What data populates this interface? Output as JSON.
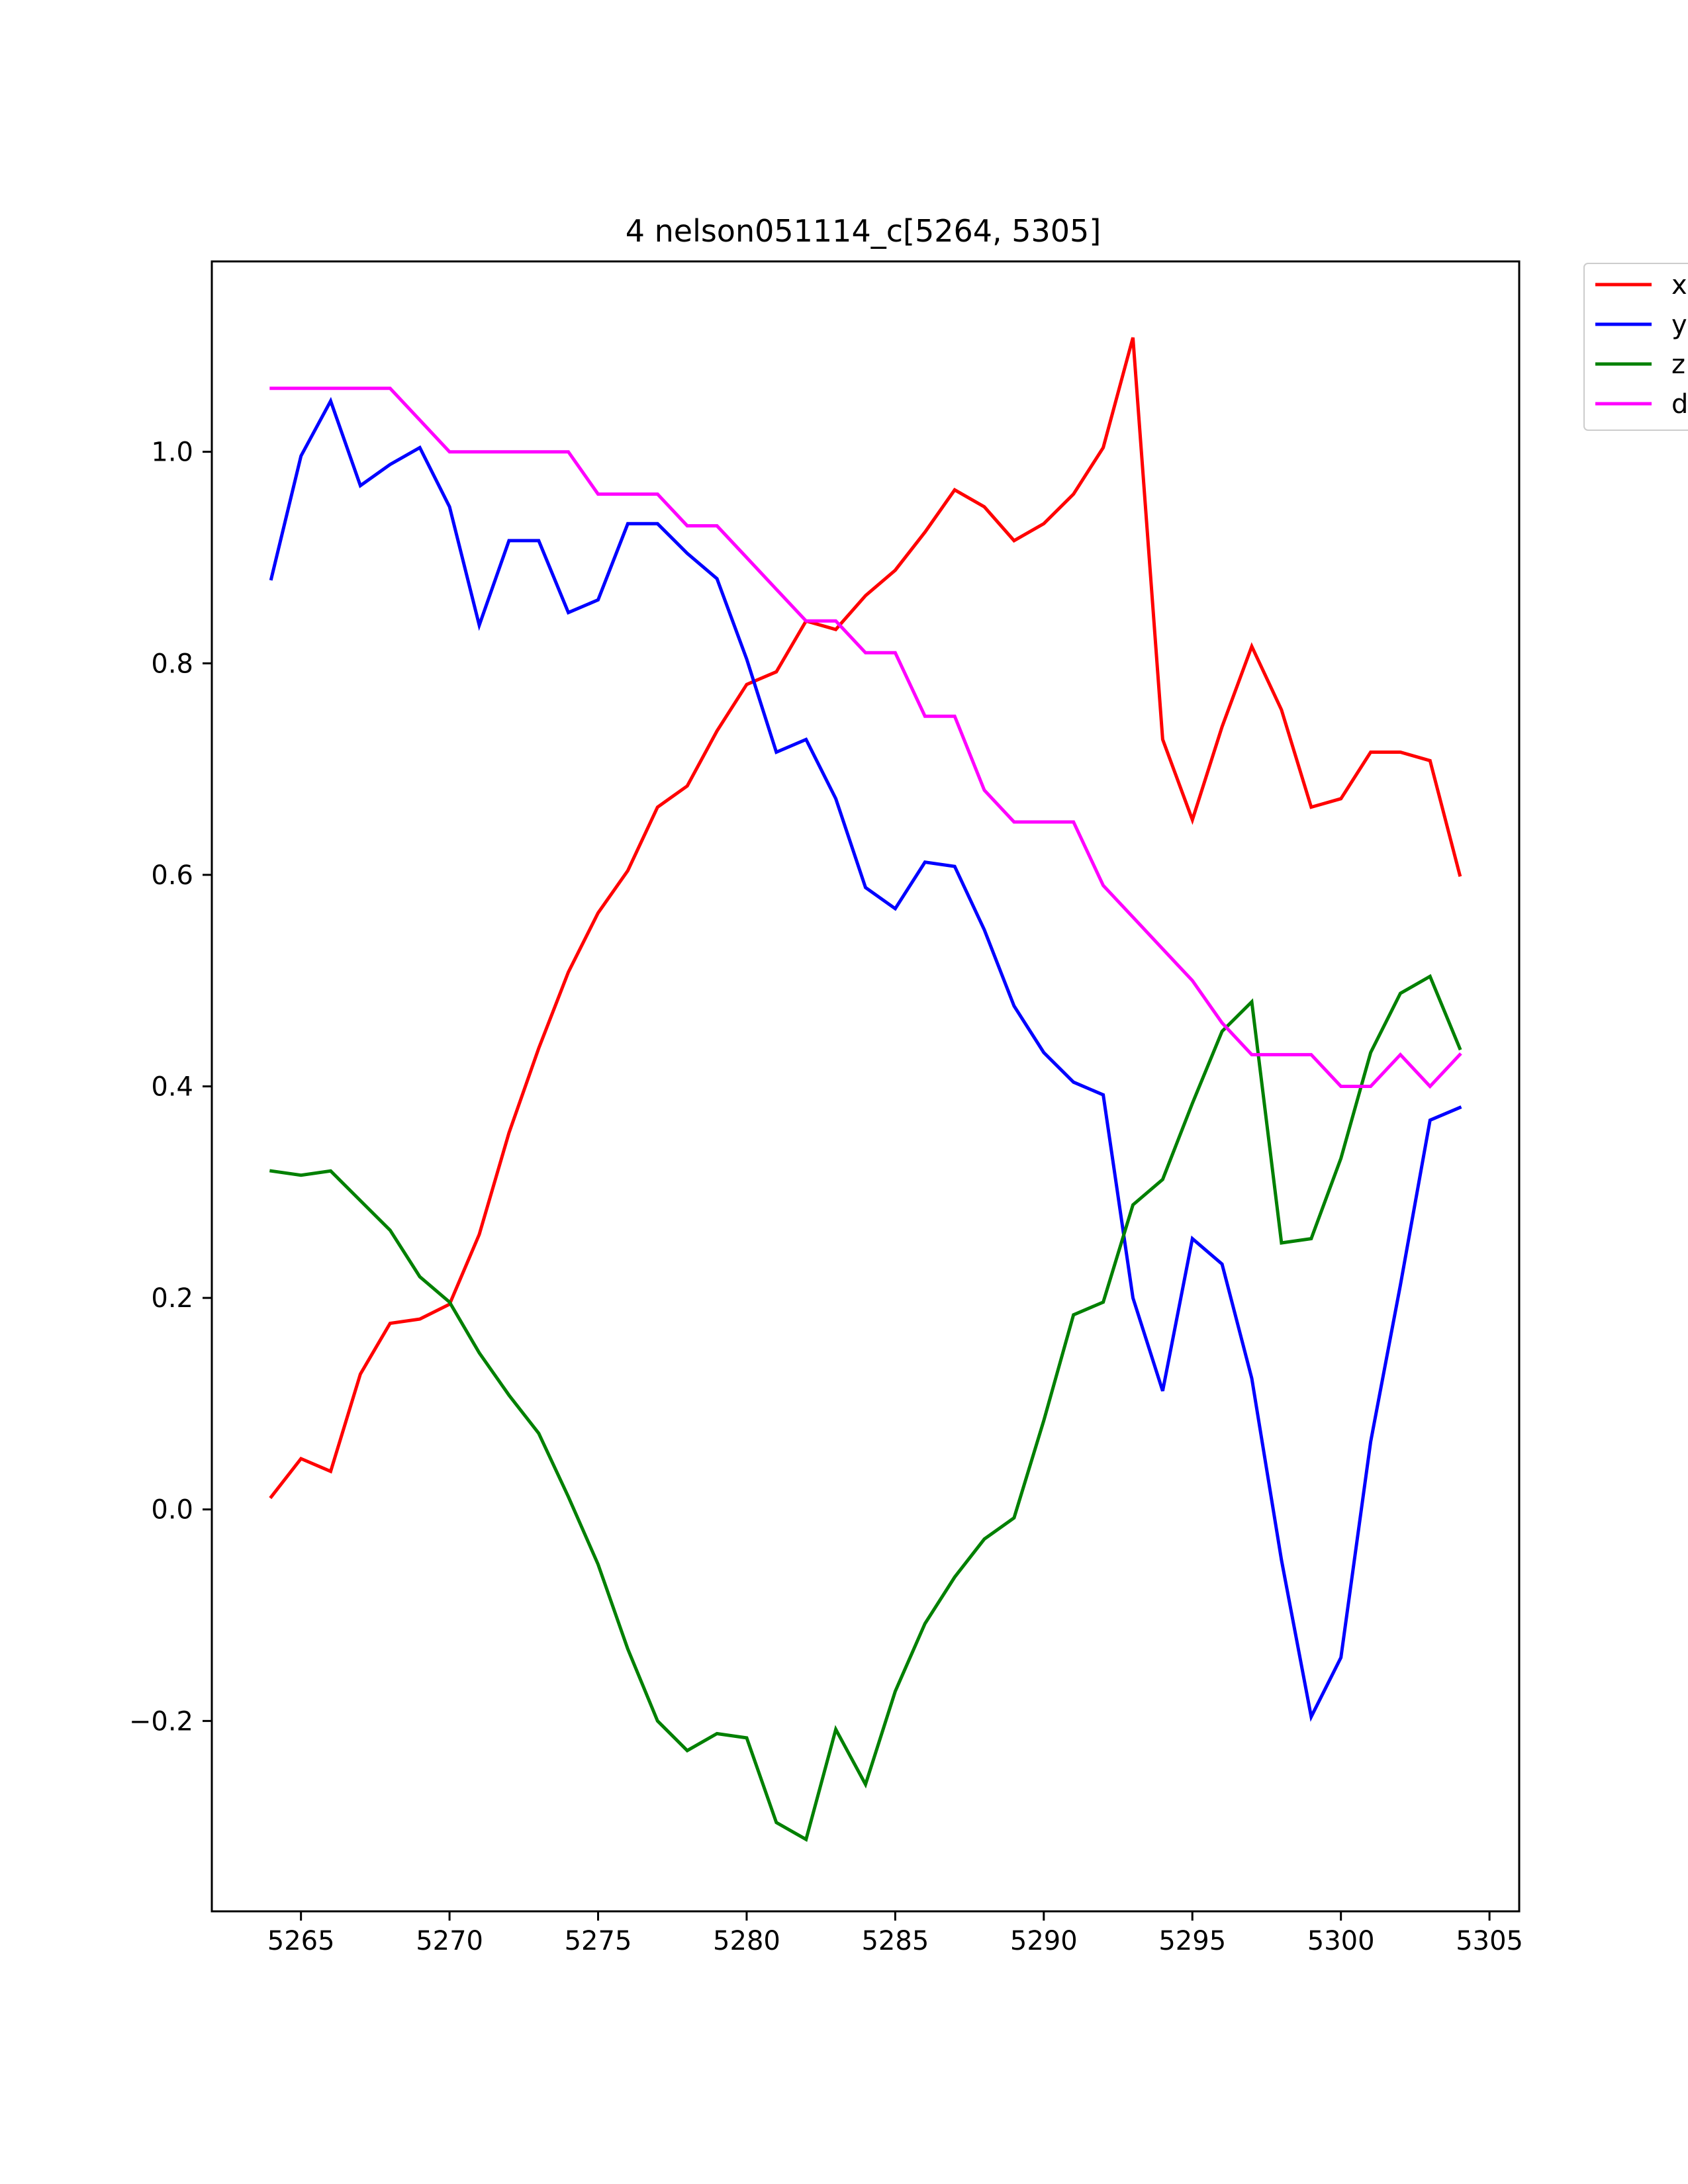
{
  "chart_data": {
    "type": "line",
    "title": "4 nelson051114_c[5264, 5305]",
    "xlabel": "",
    "ylabel": "",
    "xlim": [
      5262,
      5306
    ],
    "ylim": [
      -0.38,
      1.18
    ],
    "xticks": [
      5265,
      5270,
      5275,
      5280,
      5285,
      5290,
      5295,
      5300,
      5305
    ],
    "yticks": [
      -0.2,
      0.0,
      0.2,
      0.4,
      0.6,
      0.8,
      1.0
    ],
    "ytick_labels": [
      "−0.2",
      "0.0",
      "0.2",
      "0.4",
      "0.6",
      "0.8",
      "1.0"
    ],
    "grid": false,
    "legend": {
      "placement": "top-right, outside plot"
    },
    "x": [
      5264,
      5265,
      5266,
      5267,
      5268,
      5269,
      5270,
      5271,
      5272,
      5273,
      5274,
      5275,
      5276,
      5277,
      5278,
      5279,
      5280,
      5281,
      5282,
      5283,
      5284,
      5285,
      5286,
      5287,
      5288,
      5289,
      5290,
      5291,
      5292,
      5293,
      5294,
      5295,
      5296,
      5297,
      5298,
      5299,
      5300,
      5301,
      5302,
      5303,
      5304
    ],
    "series": [
      {
        "name": "x",
        "color": "#ff0000",
        "values": [
          0.012,
          0.048,
          0.036,
          0.128,
          0.176,
          0.18,
          0.194,
          0.26,
          0.356,
          0.436,
          0.508,
          0.564,
          0.604,
          0.664,
          0.684,
          0.736,
          0.78,
          0.792,
          0.84,
          0.832,
          0.864,
          0.888,
          0.924,
          0.964,
          0.948,
          0.916,
          0.932,
          0.96,
          1.004,
          1.108,
          0.728,
          0.652,
          0.74,
          0.816,
          0.756,
          0.664,
          0.672,
          0.716,
          0.716,
          0.708,
          0.6
        ]
      },
      {
        "name": "y",
        "color": "#0000ff",
        "values": [
          0.88,
          0.996,
          1.048,
          0.968,
          0.988,
          1.004,
          0.948,
          0.836,
          0.916,
          0.916,
          0.848,
          0.86,
          0.932,
          0.932,
          0.904,
          0.88,
          0.804,
          0.716,
          0.728,
          0.672,
          0.588,
          0.568,
          0.612,
          0.608,
          0.548,
          0.476,
          0.432,
          0.404,
          0.392,
          0.2,
          0.112,
          0.256,
          0.232,
          0.124,
          -0.048,
          -0.196,
          -0.14,
          0.064,
          0.212,
          0.368,
          0.38
        ]
      },
      {
        "name": "z",
        "color": "#008000",
        "values": [
          0.32,
          0.316,
          0.32,
          0.292,
          0.264,
          0.22,
          0.196,
          0.148,
          0.108,
          0.072,
          0.012,
          -0.052,
          -0.132,
          -0.2,
          -0.228,
          -0.212,
          -0.216,
          -0.296,
          -0.312,
          -0.208,
          -0.26,
          -0.172,
          -0.108,
          -0.064,
          -0.028,
          -0.008,
          0.084,
          0.184,
          0.196,
          0.288,
          0.312,
          0.384,
          0.452,
          0.48,
          0.252,
          0.256,
          0.332,
          0.432,
          0.488,
          0.504,
          0.436
        ]
      },
      {
        "name": "d",
        "color": "#ff00ff",
        "values": [
          1.06,
          1.06,
          1.06,
          1.06,
          1.06,
          1.03,
          1.0,
          1.0,
          1.0,
          1.0,
          1.0,
          0.96,
          0.96,
          0.96,
          0.93,
          0.93,
          0.9,
          0.87,
          0.84,
          0.84,
          0.81,
          0.81,
          0.75,
          0.75,
          0.68,
          0.65,
          0.65,
          0.65,
          0.59,
          0.56,
          0.53,
          0.5,
          0.46,
          0.43,
          0.43,
          0.43,
          0.4,
          0.4,
          0.43,
          0.4,
          0.43
        ]
      }
    ]
  }
}
